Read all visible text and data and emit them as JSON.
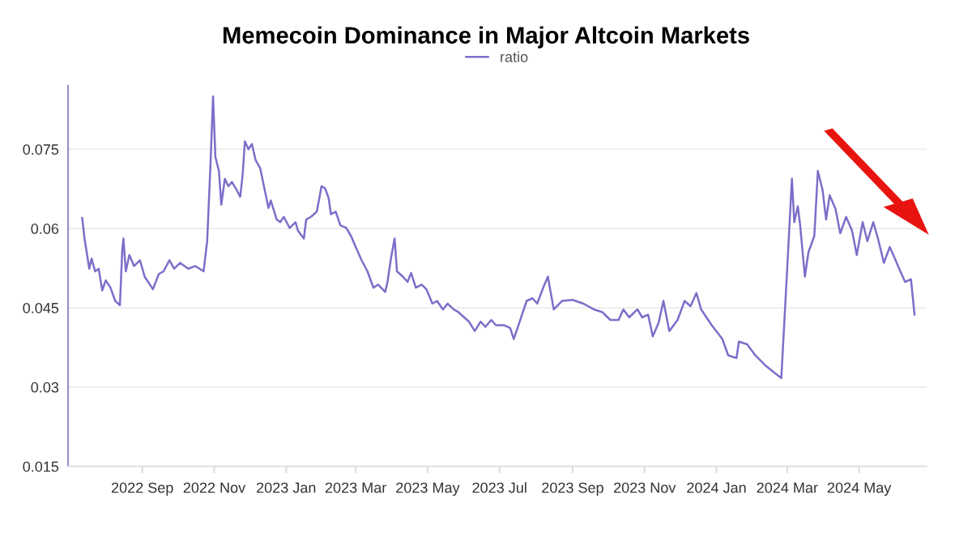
{
  "chart_data": {
    "type": "line",
    "title": "Memecoin Dominance in Major Altcoin Markets",
    "legend": "top",
    "xlim": [
      "2022-06-30",
      "2024-06-27"
    ],
    "ylim": [
      0.015,
      0.087
    ],
    "xticks": [
      {
        "value": "2022-09-01",
        "label": "2022 Sep"
      },
      {
        "value": "2022-11-01",
        "label": "2022 Nov"
      },
      {
        "value": "2023-01-01",
        "label": "2023 Jan"
      },
      {
        "value": "2023-03-01",
        "label": "2023 Mar"
      },
      {
        "value": "2023-05-01",
        "label": "2023 May"
      },
      {
        "value": "2023-07-01",
        "label": "2023 Jul"
      },
      {
        "value": "2023-09-01",
        "label": "2023 Sep"
      },
      {
        "value": "2023-11-01",
        "label": "2023 Nov"
      },
      {
        "value": "2024-01-01",
        "label": "2024 Jan"
      },
      {
        "value": "2024-03-01",
        "label": "2024 Mar"
      },
      {
        "value": "2024-05-01",
        "label": "2024 May"
      }
    ],
    "yticks": [
      0.015,
      0.03,
      0.045,
      0.06,
      0.075
    ],
    "grid": "y",
    "marker": "none",
    "line_style": "solid",
    "series": [
      {
        "name": "ratio",
        "color": "#7b6fc9",
        "x": [
          "2022-07-12",
          "2022-07-14",
          "2022-07-18",
          "2022-07-20",
          "2022-07-23",
          "2022-07-26",
          "2022-07-29",
          "2022-08-01",
          "2022-08-05",
          "2022-08-09",
          "2022-08-13",
          "2022-08-15",
          "2022-08-16",
          "2022-08-18",
          "2022-08-21",
          "2022-08-25",
          "2022-08-30",
          "2022-09-03",
          "2022-09-10",
          "2022-09-15",
          "2022-09-19",
          "2022-09-24",
          "2022-09-28",
          "2022-10-03",
          "2022-10-10",
          "2022-10-16",
          "2022-10-23",
          "2022-10-26",
          "2022-10-29",
          "2022-10-31",
          "2022-11-02",
          "2022-11-05",
          "2022-11-07",
          "2022-11-10",
          "2022-11-13",
          "2022-11-16",
          "2022-11-20",
          "2022-11-23",
          "2022-11-25",
          "2022-11-27",
          "2022-11-30",
          "2022-12-03",
          "2022-12-06",
          "2022-12-10",
          "2022-12-14",
          "2022-12-17",
          "2022-12-19",
          "2022-12-24",
          "2022-12-27",
          "2022-12-30",
          "2023-01-04",
          "2023-01-09",
          "2023-01-11",
          "2023-01-16",
          "2023-01-18",
          "2023-01-22",
          "2023-01-27",
          "2023-01-31",
          "2023-02-03",
          "2023-02-06",
          "2023-02-08",
          "2023-02-12",
          "2023-02-16",
          "2023-02-21",
          "2023-02-25",
          "2023-03-02",
          "2023-03-06",
          "2023-03-11",
          "2023-03-16",
          "2023-03-20",
          "2023-03-26",
          "2023-03-28",
          "2023-03-31",
          "2023-04-03",
          "2023-04-05",
          "2023-04-10",
          "2023-04-14",
          "2023-04-17",
          "2023-04-21",
          "2023-04-26",
          "2023-04-30",
          "2023-05-05",
          "2023-05-09",
          "2023-05-14",
          "2023-05-18",
          "2023-05-23",
          "2023-05-27",
          "2023-06-01",
          "2023-06-05",
          "2023-06-10",
          "2023-06-15",
          "2023-06-19",
          "2023-06-24",
          "2023-06-28",
          "2023-07-05",
          "2023-07-10",
          "2023-07-13",
          "2023-07-16",
          "2023-07-24",
          "2023-07-29",
          "2023-08-02",
          "2023-08-07",
          "2023-08-11",
          "2023-08-16",
          "2023-08-23",
          "2023-09-01",
          "2023-09-10",
          "2023-09-19",
          "2023-09-26",
          "2023-10-03",
          "2023-10-10",
          "2023-10-14",
          "2023-10-19",
          "2023-10-26",
          "2023-10-30",
          "2023-11-04",
          "2023-11-08",
          "2023-11-13",
          "2023-11-17",
          "2023-11-22",
          "2023-11-29",
          "2023-12-05",
          "2023-12-10",
          "2023-12-15",
          "2023-12-19",
          "2023-12-28",
          "2024-01-06",
          "2024-01-11",
          "2024-01-18",
          "2024-01-20",
          "2024-01-27",
          "2024-02-03",
          "2024-02-12",
          "2024-02-21",
          "2024-02-25",
          "2024-03-01",
          "2024-03-05",
          "2024-03-07",
          "2024-03-10",
          "2024-03-12",
          "2024-03-16",
          "2024-03-19",
          "2024-03-24",
          "2024-03-27",
          "2024-03-31",
          "2024-04-03",
          "2024-04-06",
          "2024-04-11",
          "2024-04-15",
          "2024-04-20",
          "2024-04-25",
          "2024-04-29",
          "2024-05-04",
          "2024-05-08",
          "2024-05-13",
          "2024-05-17",
          "2024-05-22",
          "2024-05-27",
          "2024-05-31",
          "2024-06-04",
          "2024-06-09",
          "2024-06-14",
          "2024-06-17"
        ],
        "values": [
          0.062,
          0.0581,
          0.0524,
          0.0543,
          0.0519,
          0.0524,
          0.0483,
          0.0502,
          0.0488,
          0.0463,
          0.0455,
          0.056,
          0.0581,
          0.0519,
          0.055,
          0.0529,
          0.054,
          0.0509,
          0.0485,
          0.0514,
          0.0519,
          0.054,
          0.0524,
          0.0535,
          0.0524,
          0.0529,
          0.0519,
          0.0576,
          0.073,
          0.085,
          0.0735,
          0.0709,
          0.0645,
          0.0694,
          0.068,
          0.0688,
          0.0673,
          0.066,
          0.0699,
          0.0765,
          0.075,
          0.076,
          0.073,
          0.0714,
          0.0671,
          0.0639,
          0.0653,
          0.0617,
          0.0612,
          0.0622,
          0.0601,
          0.0612,
          0.0596,
          0.0581,
          0.0617,
          0.0622,
          0.0632,
          0.068,
          0.0676,
          0.0658,
          0.0627,
          0.0632,
          0.0606,
          0.0601,
          0.0586,
          0.056,
          0.054,
          0.0519,
          0.0488,
          0.0494,
          0.048,
          0.0499,
          0.0545,
          0.0581,
          0.0519,
          0.0509,
          0.0499,
          0.0516,
          0.0488,
          0.0494,
          0.0485,
          0.0458,
          0.0463,
          0.0447,
          0.0458,
          0.0447,
          0.0442,
          0.0432,
          0.0424,
          0.0406,
          0.0424,
          0.0414,
          0.0427,
          0.0417,
          0.0417,
          0.0412,
          0.0391,
          0.041,
          0.0463,
          0.0468,
          0.0458,
          0.0488,
          0.0509,
          0.0447,
          0.0463,
          0.0465,
          0.0458,
          0.0447,
          0.0442,
          0.0427,
          0.0427,
          0.0447,
          0.0432,
          0.0447,
          0.0432,
          0.0437,
          0.0396,
          0.0422,
          0.0463,
          0.0406,
          0.0427,
          0.0463,
          0.0453,
          0.0478,
          0.0447,
          0.0417,
          0.0391,
          0.036,
          0.0355,
          0.0386,
          0.0381,
          0.036,
          0.034,
          0.0324,
          0.0317,
          0.0524,
          0.0694,
          0.0612,
          0.0642,
          0.0606,
          0.0509,
          0.0555,
          0.0586,
          0.0709,
          0.0673,
          0.0617,
          0.0663,
          0.0637,
          0.0591,
          0.0622,
          0.0596,
          0.055,
          0.0612,
          0.0576,
          0.0612,
          0.0581,
          0.0535,
          0.0565,
          0.0545,
          0.0524,
          0.0499,
          0.0504,
          0.0437
        ]
      }
    ]
  }
}
